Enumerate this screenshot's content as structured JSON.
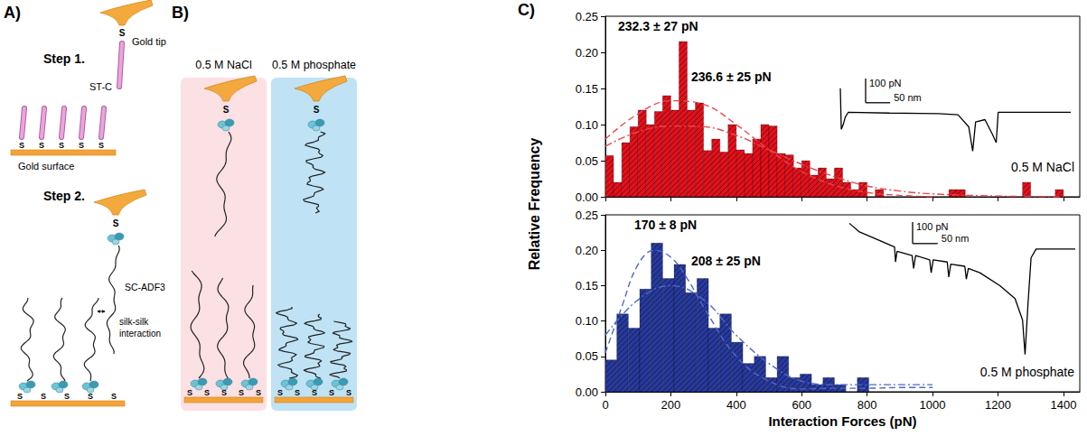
{
  "panels": {
    "A": {
      "letter": "A)",
      "step1": "Step 1.",
      "tip_label": "Gold tip",
      "rod_label": "ST-C",
      "surface_label": "Gold surface",
      "step2": "Step 2.",
      "chain_label": "SC-ADF3",
      "interaction_label": "silk-silk interaction",
      "anchor": "S"
    },
    "B": {
      "letter": "B)",
      "conditions": [
        "0.5 M NaCl",
        "0.5 M phosphate"
      ],
      "anchor": "S"
    },
    "C": {
      "letter": "C)",
      "y_label": "Relative Frequency",
      "x_label": "Interaction Forces (pN)"
    }
  },
  "chart_data": [
    {
      "type": "histogram",
      "label": "0.5 M NaCl",
      "color": "#e3101b",
      "bins": [
        0,
        25,
        50,
        75,
        100,
        125,
        150,
        175,
        200,
        225,
        250,
        275,
        300,
        325,
        350,
        375,
        400,
        425,
        450,
        475,
        500,
        525,
        550,
        575,
        600,
        625,
        650,
        675,
        700,
        725,
        750,
        775,
        800,
        825,
        850,
        875,
        900,
        925,
        950,
        975,
        1000,
        1025,
        1050,
        1075,
        1100,
        1125,
        1150,
        1175,
        1200,
        1225,
        1250,
        1275,
        1300,
        1325,
        1350,
        1375,
        1400
      ],
      "values": [
        0.057,
        0.02,
        0.075,
        0.097,
        0.12,
        0.1,
        0.118,
        0.14,
        0.12,
        0.215,
        0.12,
        0.13,
        0.064,
        0.08,
        0.062,
        0.1,
        0.065,
        0.06,
        0.08,
        0.1,
        0.098,
        0.06,
        0.058,
        0.04,
        0.05,
        0.03,
        0.04,
        0.025,
        0.04,
        0.02,
        0.01,
        0.02,
        0,
        0.01,
        0,
        0,
        0,
        0,
        0,
        0,
        0,
        0,
        0.01,
        0.01,
        0,
        0,
        0,
        0,
        0,
        0,
        0,
        0.02,
        0,
        0,
        0,
        0.01
      ],
      "xlim": [
        0,
        1450
      ],
      "xticks": [
        0,
        200,
        400,
        600,
        800,
        1000,
        1200,
        1400
      ],
      "ylim": [
        0,
        0.25
      ],
      "yticks": [
        {
          "value": 0,
          "label": "0.00"
        },
        {
          "value": 0.05,
          "label": "0.05"
        },
        {
          "value": 0.1,
          "label": "0.10"
        },
        {
          "value": 0.15,
          "label": "0.15"
        },
        {
          "value": 0.2,
          "label": "0.20"
        },
        {
          "value": 0.25,
          "label": "0.25"
        }
      ],
      "tick_labels": "y",
      "grid": false,
      "annotations": [
        "232.3 ± 27 pN",
        "236.6 ± 25 pN"
      ],
      "fits": [
        {
          "color": "#e8474c",
          "line_style": "dashed",
          "x": [
            0,
            100,
            200,
            300,
            400,
            500,
            600,
            700,
            800,
            900,
            1000
          ],
          "values": [
            0.08,
            0.115,
            0.133,
            0.128,
            0.1,
            0.065,
            0.035,
            0.016,
            0.006,
            0.002,
            0
          ]
        },
        {
          "color": "#e8474c",
          "line_style": "dashdot",
          "x": [
            0,
            100,
            200,
            300,
            400,
            500,
            600,
            700,
            800,
            900,
            1000,
            1200,
            1400
          ],
          "values": [
            0.07,
            0.09,
            0.098,
            0.097,
            0.085,
            0.065,
            0.045,
            0.028,
            0.015,
            0.008,
            0.004,
            0.001,
            0
          ]
        }
      ],
      "inset": {
        "x": [
          0,
          2,
          6,
          10,
          16,
          100,
          200,
          240,
          262,
          270,
          276,
          295,
          310,
          318,
          322,
          380,
          470
        ],
        "values": [
          100,
          -70,
          -50,
          -20,
          0,
          -3,
          -5,
          -10,
          -60,
          -160,
          -40,
          -30,
          -90,
          -125,
          0,
          0,
          0
        ],
        "xlim": [
          0,
          470
        ],
        "ylim": [
          -170,
          110
        ],
        "tick_labels": false,
        "color": "#000000",
        "y_scale": {
          "value": 100,
          "label": "100 pN"
        },
        "x_scale": {
          "value": 50,
          "label": "50 nm"
        }
      }
    },
    {
      "type": "histogram",
      "label": "0.5 M phosphate",
      "color": "#27399b",
      "bins": [
        0,
        35,
        70,
        105,
        140,
        175,
        210,
        245,
        280,
        315,
        350,
        385,
        420,
        455,
        490,
        525,
        560,
        595,
        630,
        665,
        700,
        735,
        770,
        805,
        840
      ],
      "values": [
        0.045,
        0.11,
        0.09,
        0.145,
        0.21,
        0.16,
        0.18,
        0.14,
        0.16,
        0.09,
        0.11,
        0.07,
        0.04,
        0.05,
        0.02,
        0.05,
        0.02,
        0.025,
        0.01,
        0.02,
        0.01,
        0,
        0.02,
        0
      ],
      "xlim": [
        0,
        1450
      ],
      "xticks": [
        0,
        200,
        400,
        600,
        800,
        1000,
        1200,
        1400
      ],
      "ylim": [
        0,
        0.25
      ],
      "yticks": [
        {
          "value": 0,
          "label": "0.00"
        },
        {
          "value": 0.05,
          "label": "0.05"
        },
        {
          "value": 0.1,
          "label": "0.10"
        },
        {
          "value": 0.15,
          "label": "0.15"
        },
        {
          "value": 0.2,
          "label": "0.20"
        },
        {
          "value": 0.25,
          "label": "0.25"
        }
      ],
      "grid": false,
      "annotations": [
        "170 ± 8 pN",
        "208 ± 25 pN"
      ],
      "fits": [
        {
          "color": "#4f68c9",
          "line_style": "dashed",
          "x": [
            0,
            50,
            100,
            150,
            200,
            250,
            300,
            400,
            500,
            600,
            700,
            800,
            900,
            1000
          ],
          "values": [
            0.055,
            0.12,
            0.18,
            0.2,
            0.19,
            0.16,
            0.12,
            0.05,
            0.015,
            0.004,
            0.005,
            0.005,
            0.006,
            0.006
          ]
        },
        {
          "color": "#4f68c9",
          "line_style": "dashdot",
          "x": [
            0,
            100,
            200,
            300,
            400,
            500,
            600,
            700,
            800,
            900,
            1000
          ],
          "values": [
            0.08,
            0.13,
            0.15,
            0.13,
            0.08,
            0.04,
            0.015,
            0.01,
            0.01,
            0.01,
            0.01
          ]
        }
      ],
      "inset": {
        "x": [
          0,
          20,
          60,
          90,
          92,
          95,
          125,
          128,
          132,
          160,
          163,
          167,
          195,
          198,
          202,
          230,
          233,
          237,
          260,
          300,
          330,
          345,
          350,
          356,
          362,
          372,
          450
        ],
        "values": [
          120,
          80,
          40,
          10,
          -60,
          -10,
          -30,
          -90,
          -30,
          -50,
          -110,
          -50,
          -60,
          -130,
          -70,
          -80,
          -140,
          -90,
          -110,
          -170,
          -230,
          -330,
          -490,
          -250,
          -40,
          0,
          0
        ],
        "xlim": [
          0,
          450
        ],
        "ylim": [
          -500,
          130
        ],
        "tick_labels": false,
        "color": "#000000",
        "y_scale": {
          "value": 100,
          "label": "100 pN"
        },
        "x_scale": {
          "value": 50,
          "label": "50 nm"
        }
      }
    }
  ]
}
